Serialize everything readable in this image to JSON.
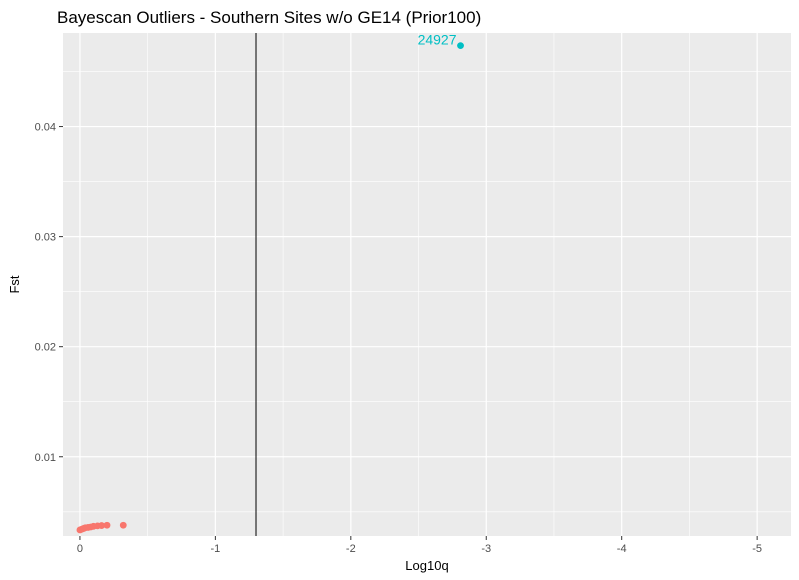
{
  "chart_data": {
    "type": "scatter",
    "title": "Bayescan Outliers - Southern Sites w/o GE14 (Prior100)",
    "xlabel": "Log10q",
    "ylabel": "Fst",
    "x_reversed": true,
    "xlim": [
      0.125,
      -5.25
    ],
    "ylim": [
      0.0028,
      0.0485
    ],
    "x_ticks": [
      {
        "value": 0,
        "label": "0"
      },
      {
        "value": -1,
        "label": "-1"
      },
      {
        "value": -2,
        "label": "-2"
      },
      {
        "value": -3,
        "label": "-3"
      },
      {
        "value": -4,
        "label": "-4"
      },
      {
        "value": -5,
        "label": "-5"
      }
    ],
    "y_ticks": [
      {
        "value": 0.01,
        "label": "0.01"
      },
      {
        "value": 0.02,
        "label": "0.02"
      },
      {
        "value": 0.03,
        "label": "0.03"
      },
      {
        "value": 0.04,
        "label": "0.04"
      }
    ],
    "grid": true,
    "vline": -1.3,
    "series": [
      {
        "color": "#F8766D",
        "points": [
          {
            "x": 0.0,
            "y": 0.00335
          },
          {
            "x": -0.01,
            "y": 0.0034
          },
          {
            "x": -0.02,
            "y": 0.00345
          },
          {
            "x": -0.03,
            "y": 0.0035
          },
          {
            "x": -0.04,
            "y": 0.00355
          },
          {
            "x": -0.06,
            "y": 0.00358
          },
          {
            "x": -0.08,
            "y": 0.00362
          },
          {
            "x": -0.1,
            "y": 0.00368
          },
          {
            "x": -0.13,
            "y": 0.00372
          },
          {
            "x": -0.16,
            "y": 0.00375
          },
          {
            "x": -0.2,
            "y": 0.00378
          },
          {
            "x": -0.32,
            "y": 0.00378
          }
        ]
      },
      {
        "color": "#00BFC4",
        "points": [
          {
            "x": -2.81,
            "y": 0.04735,
            "label": "24927"
          }
        ]
      }
    ]
  }
}
